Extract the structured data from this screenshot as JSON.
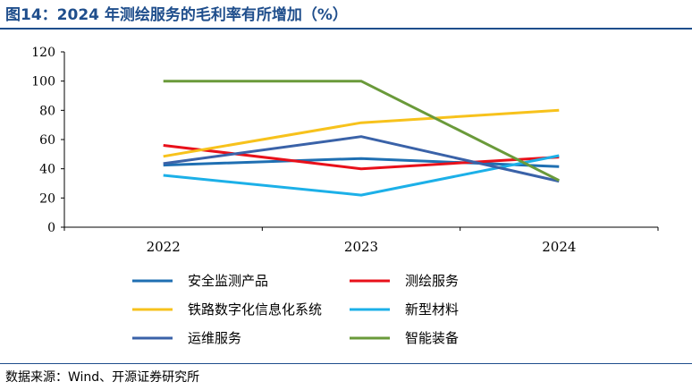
{
  "header": {
    "title": "图14：2024 年测绘服务的毛利率有所增加（%）"
  },
  "footer": {
    "source": "数据来源：Wind、开源证券研究所"
  },
  "chart_data": {
    "type": "line",
    "title": "",
    "xlabel": "",
    "ylabel": "",
    "categories": [
      "2022",
      "2023",
      "2024"
    ],
    "ylim": [
      0,
      120
    ],
    "yticks": [
      0,
      20,
      40,
      60,
      80,
      100,
      120
    ],
    "grid": false,
    "legend_position": "bottom",
    "series": [
      {
        "name": "安全监测产品",
        "color": "#1f6fb2",
        "values": [
          42.5,
          47,
          41.5
        ]
      },
      {
        "name": "测绘服务",
        "color": "#e8101a",
        "values": [
          56,
          40,
          48
        ]
      },
      {
        "name": "铁路数字化信息化系统",
        "color": "#f7c21c",
        "values": [
          48.5,
          71.5,
          80
        ]
      },
      {
        "name": "新型材料",
        "color": "#1cb0e8",
        "values": [
          35.5,
          22,
          49
        ]
      },
      {
        "name": "运维服务",
        "color": "#3a62a8",
        "values": [
          43.5,
          62,
          31.5
        ]
      },
      {
        "name": "智能装备",
        "color": "#6a9a3a",
        "values": [
          100,
          100,
          32
        ]
      }
    ]
  }
}
